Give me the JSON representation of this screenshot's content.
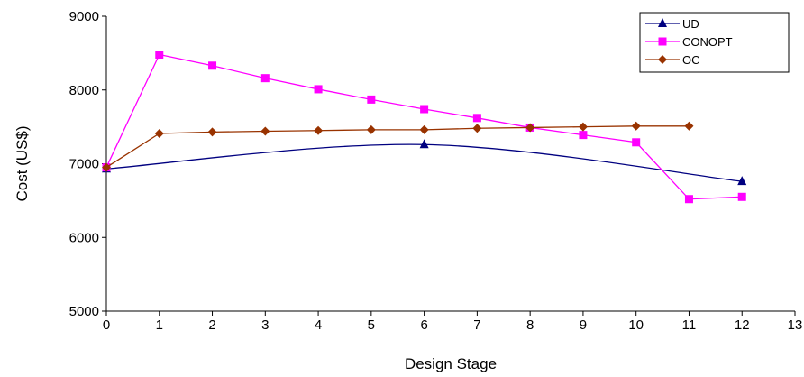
{
  "chart_data": {
    "type": "line",
    "title": "",
    "xlabel": "Design Stage",
    "ylabel": "Cost (US$)",
    "xlim": [
      0,
      13
    ],
    "ylim": [
      5000,
      9000
    ],
    "x_ticks": [
      0,
      1,
      2,
      3,
      4,
      5,
      6,
      7,
      8,
      9,
      10,
      11,
      12,
      13
    ],
    "y_ticks": [
      5000,
      6000,
      7000,
      8000,
      9000
    ],
    "grid": false,
    "legend_position": "top-right",
    "series": [
      {
        "name": "UD",
        "color": "#000080",
        "marker": "triangle",
        "smooth": true,
        "x": [
          0,
          6,
          12
        ],
        "y": [
          6930,
          7260,
          6760
        ]
      },
      {
        "name": "CONOPT",
        "color": "#ff00ff",
        "marker": "square",
        "smooth": false,
        "x": [
          0,
          1,
          2,
          3,
          4,
          5,
          6,
          7,
          8,
          9,
          10,
          11,
          12
        ],
        "y": [
          6950,
          8480,
          8330,
          8160,
          8010,
          7870,
          7740,
          7620,
          7490,
          7390,
          7290,
          6520,
          6550
        ]
      },
      {
        "name": "OC",
        "color": "#993300",
        "marker": "diamond",
        "smooth": false,
        "x": [
          0,
          1,
          2,
          3,
          4,
          5,
          6,
          7,
          8,
          9,
          10,
          11
        ],
        "y": [
          6950,
          7410,
          7430,
          7440,
          7450,
          7460,
          7460,
          7480,
          7490,
          7500,
          7510,
          7510
        ]
      }
    ]
  }
}
